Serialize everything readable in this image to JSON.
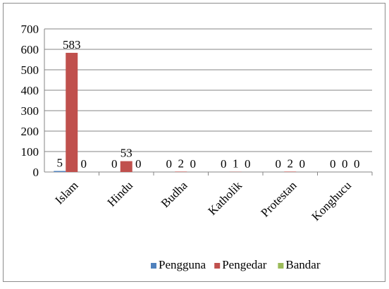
{
  "chart_data": {
    "type": "bar",
    "categories": [
      "Islam",
      "Hindu",
      "Budha",
      "Katholik",
      "Protestan",
      "Konghucu"
    ],
    "series": [
      {
        "name": "Pengguna",
        "color": "#4F81BD",
        "values": [
          5,
          0,
          0,
          0,
          0,
          0
        ]
      },
      {
        "name": "Pengedar",
        "color": "#C0504D",
        "values": [
          583,
          53,
          2,
          1,
          2,
          0
        ]
      },
      {
        "name": "Bandar",
        "color": "#9BBB59",
        "values": [
          0,
          0,
          0,
          0,
          0,
          0
        ]
      }
    ],
    "ylim": [
      0,
      700
    ],
    "yticks": [
      0,
      100,
      200,
      300,
      400,
      500,
      600,
      700
    ],
    "grid": true,
    "legend_position": "bottom",
    "data_labels": true,
    "title": "",
    "xlabel": "",
    "ylabel": ""
  }
}
